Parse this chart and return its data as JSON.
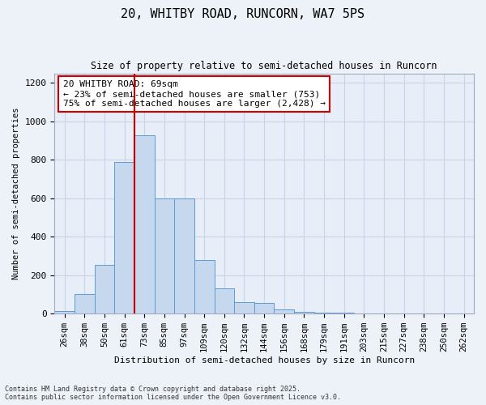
{
  "title_line1": "20, WHITBY ROAD, RUNCORN, WA7 5PS",
  "title_line2": "Size of property relative to semi-detached houses in Runcorn",
  "xlabel": "Distribution of semi-detached houses by size in Runcorn",
  "ylabel": "Number of semi-detached properties",
  "categories": [
    "26sqm",
    "38sqm",
    "50sqm",
    "61sqm",
    "73sqm",
    "85sqm",
    "97sqm",
    "109sqm",
    "120sqm",
    "132sqm",
    "144sqm",
    "156sqm",
    "168sqm",
    "179sqm",
    "191sqm",
    "203sqm",
    "215sqm",
    "227sqm",
    "238sqm",
    "250sqm",
    "262sqm"
  ],
  "values": [
    15,
    100,
    255,
    790,
    930,
    600,
    600,
    280,
    130,
    60,
    55,
    20,
    10,
    5,
    5,
    3,
    2,
    1,
    1,
    0,
    2
  ],
  "bar_color": "#c5d8ee",
  "bar_edge_color": "#5b9bd5",
  "vline_index": 3,
  "vline_color": "#cc0000",
  "annotation_text": "20 WHITBY ROAD: 69sqm\n← 23% of semi-detached houses are smaller (753)\n75% of semi-detached houses are larger (2,428) →",
  "annotation_box_color": "#ffffff",
  "annotation_box_edge": "#cc0000",
  "ylim": [
    0,
    1250
  ],
  "yticks": [
    0,
    200,
    400,
    600,
    800,
    1000,
    1200
  ],
  "grid_color": "#c8d4e8",
  "background_color": "#e8eef8",
  "fig_background": "#edf1f8",
  "footer_line1": "Contains HM Land Registry data © Crown copyright and database right 2025.",
  "footer_line2": "Contains public sector information licensed under the Open Government Licence v3.0."
}
